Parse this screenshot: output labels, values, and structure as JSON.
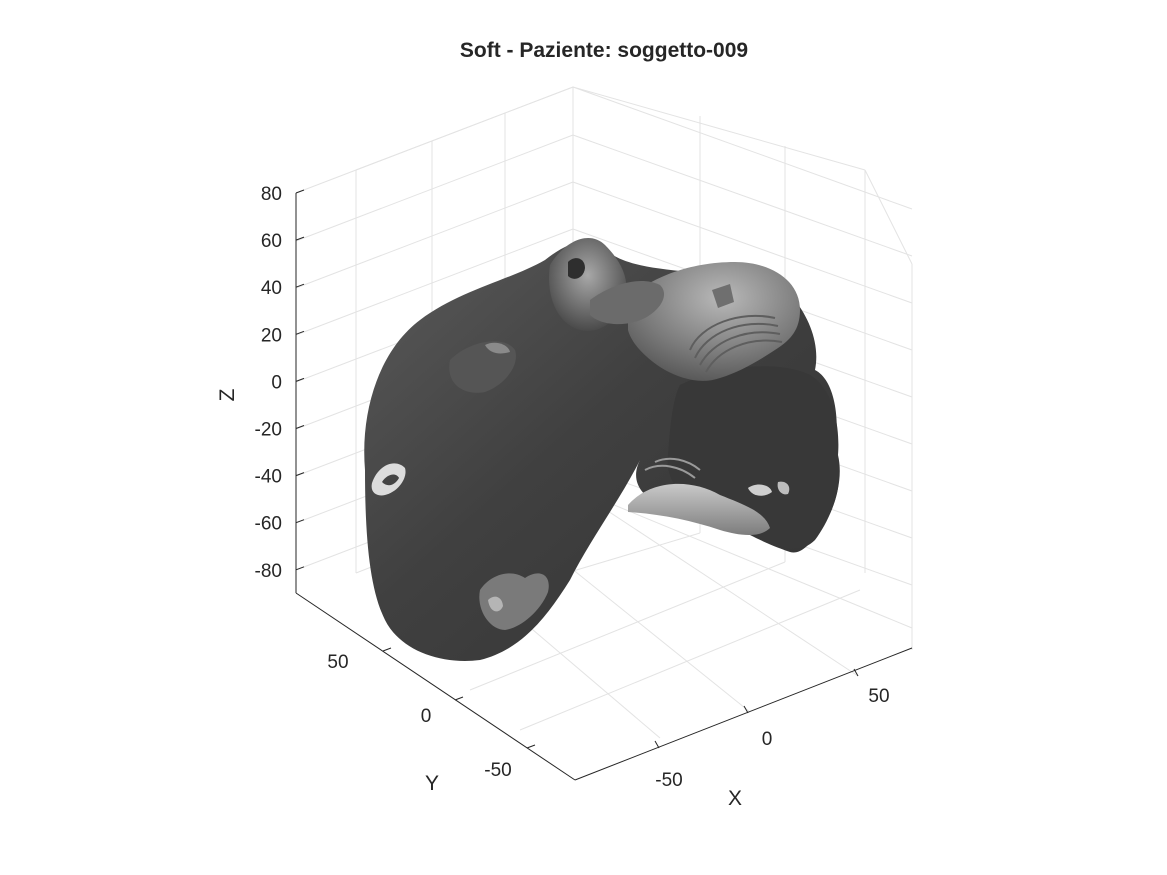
{
  "chart_data": {
    "type": "surface3d",
    "title": "Soft - Paziente: soggetto-009",
    "xlabel": "X",
    "ylabel": "Y",
    "zlabel": "Z",
    "x_ticks": [
      "-50",
      "0",
      "50"
    ],
    "y_ticks": [
      "-50",
      "0",
      "50"
    ],
    "z_ticks": [
      "80",
      "60",
      "40",
      "20",
      "0",
      "-20",
      "-40",
      "-60",
      "-80"
    ],
    "grid": true,
    "colormap": "gray",
    "colors": {
      "surface_dark": "#3d3d3d",
      "surface_light": "#9a9a9a",
      "grid": "#e3e3e3",
      "axis": "#262626"
    }
  }
}
